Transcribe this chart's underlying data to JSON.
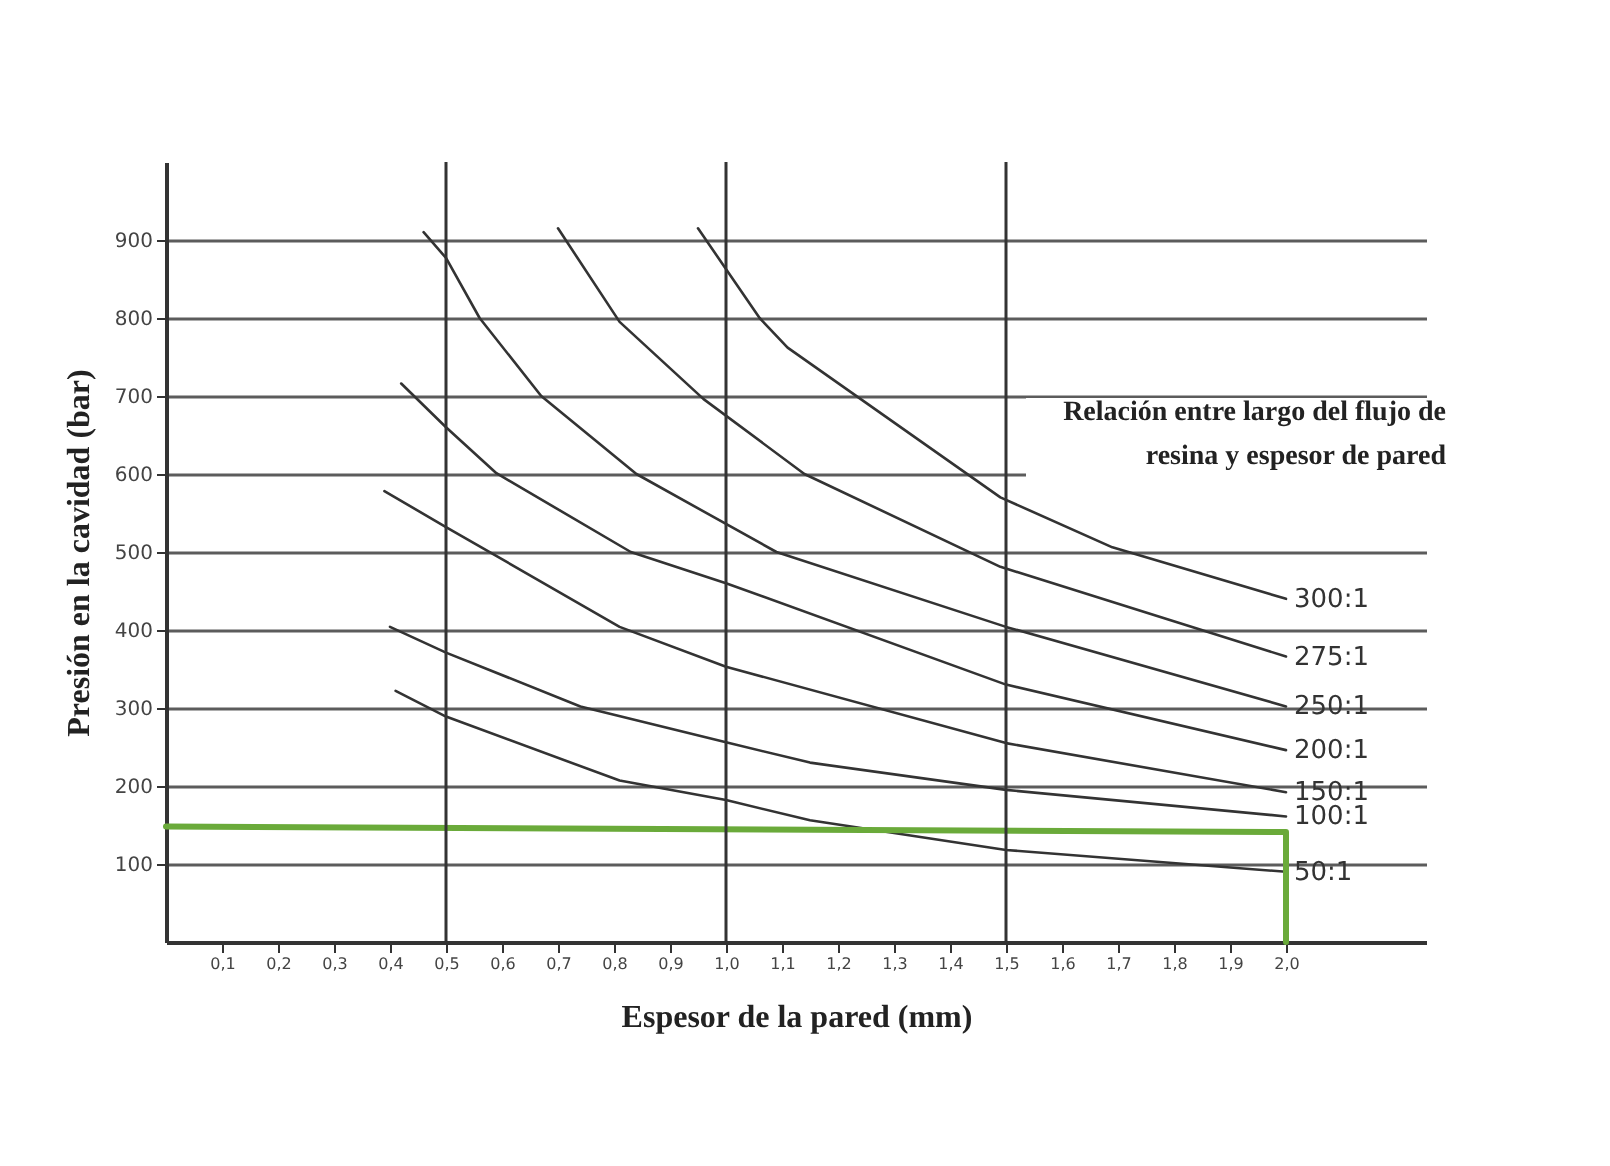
{
  "chart_data": {
    "type": "line",
    "xlabel": "Espesor de la pared     (mm)",
    "ylabel": "Presión en la cavidad  (bar)",
    "annotations": [
      "Relación entre largo del flujo de resina y espesor de pared"
    ],
    "xlim": [
      0,
      2.25
    ],
    "ylim": [
      0,
      1000
    ],
    "xticks": [
      {
        "value": 0.1,
        "label": "0,1"
      },
      {
        "value": 0.2,
        "label": "0,2"
      },
      {
        "value": 0.3,
        "label": "0,3"
      },
      {
        "value": 0.4,
        "label": "0,4"
      },
      {
        "value": 0.5,
        "label": "0,5"
      },
      {
        "value": 0.6,
        "label": "0,6"
      },
      {
        "value": 0.7,
        "label": "0,7"
      },
      {
        "value": 0.8,
        "label": "0,8"
      },
      {
        "value": 0.9,
        "label": "0,9"
      },
      {
        "value": 1.0,
        "label": "1,0"
      },
      {
        "value": 1.1,
        "label": "1,1"
      },
      {
        "value": 1.2,
        "label": "1,2"
      },
      {
        "value": 1.3,
        "label": "1,3"
      },
      {
        "value": 1.4,
        "label": "1,4"
      },
      {
        "value": 1.5,
        "label": "1,5"
      },
      {
        "value": 1.6,
        "label": "1,6"
      },
      {
        "value": 1.7,
        "label": "1,7"
      },
      {
        "value": 1.8,
        "label": "1,8"
      },
      {
        "value": 1.9,
        "label": "1,9"
      },
      {
        "value": 2.0,
        "label": "2,0"
      }
    ],
    "yticks": [
      100,
      200,
      300,
      400,
      500,
      600,
      700,
      800,
      900
    ],
    "grid": "y",
    "marker": "none",
    "line_style": "solid",
    "ref_lines": [
      {
        "axis": "x",
        "value": 0.5,
        "label": null
      },
      {
        "axis": "x",
        "value": 1.0,
        "label": null
      },
      {
        "axis": "x",
        "value": 1.5,
        "label": null
      }
    ],
    "series": [
      {
        "name": "300:1",
        "color": "#333333",
        "x": [
          0.95,
          1.06,
          1.11,
          1.49,
          1.69,
          2.0
        ],
        "values": [
          915,
          800,
          762,
          570,
          506,
          440
        ]
      },
      {
        "name": "275:1",
        "color": "#333333",
        "x": [
          0.7,
          0.81,
          0.96,
          1.14,
          1.49,
          2.0
        ],
        "values": [
          915,
          795,
          696,
          600,
          481,
          366
        ]
      },
      {
        "name": "250:1",
        "color": "#333333",
        "x": [
          0.46,
          0.5,
          0.56,
          0.67,
          0.84,
          1.09,
          1.5,
          2.0
        ],
        "values": [
          910,
          877,
          800,
          700,
          600,
          500,
          404,
          302
        ]
      },
      {
        "name": "200:1",
        "color": "#333333",
        "x": [
          0.42,
          0.5,
          0.59,
          0.83,
          1.0,
          1.5,
          2.0
        ],
        "values": [
          716,
          660,
          601,
          500,
          460,
          330,
          246
        ]
      },
      {
        "name": "150:1",
        "color": "#333333",
        "x": [
          0.39,
          0.5,
          0.81,
          1.0,
          1.5,
          2.0
        ],
        "values": [
          578,
          532,
          404,
          353,
          255,
          192
        ]
      },
      {
        "name": "100:1",
        "color": "#333333",
        "x": [
          0.4,
          0.5,
          0.74,
          1.0,
          1.15,
          1.5,
          2.0
        ],
        "values": [
          404,
          371,
          302,
          256,
          230,
          195,
          161
        ]
      },
      {
        "name": "50:1",
        "color": "#333333",
        "x": [
          0.41,
          0.5,
          0.81,
          1.0,
          1.15,
          1.5,
          2.0
        ],
        "values": [
          322,
          289,
          207,
          182,
          156,
          118,
          90
        ]
      },
      {
        "color": "#6aaa3a",
        "x": [
          0,
          2.0,
          2.0
        ],
        "values": [
          148,
          141,
          0
        ]
      }
    ]
  }
}
